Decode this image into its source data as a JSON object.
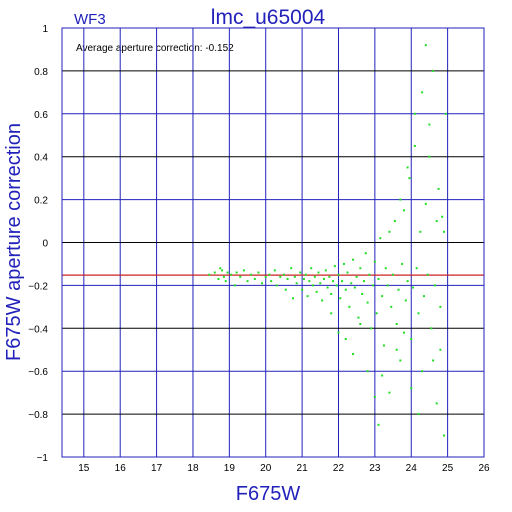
{
  "colors": {
    "axis": "#2222bb",
    "grid_alt": "#000000",
    "points": "#22dd22",
    "ref_line": "#cc2222",
    "text": "#000000"
  },
  "chart_data": {
    "type": "scatter",
    "title": "lmc_u65004",
    "subtitle": "WF3",
    "annotation": "Average aperture correction:  -0.152",
    "xlabel": "F675W",
    "ylabel": "F675W aperture correction",
    "xlim": [
      14.4,
      26
    ],
    "ylim": [
      -1,
      1
    ],
    "xticks": [
      15,
      16,
      17,
      18,
      19,
      20,
      21,
      22,
      23,
      24,
      25,
      26
    ],
    "xtick_labels": [
      "15",
      "16",
      "17",
      "18",
      "19",
      "20",
      "21",
      "22",
      "23",
      "24",
      "25",
      "26"
    ],
    "yticks": [
      -1,
      -0.8,
      -0.6,
      -0.4,
      -0.2,
      0,
      0.2,
      0.4,
      0.6,
      0.8,
      1
    ],
    "ytick_labels": [
      "−1",
      "−0.8",
      "−0.6",
      "−0.4",
      "−0.2",
      "0",
      "0.2",
      "0.4",
      "0.6",
      "0.8",
      "1"
    ],
    "grid": true,
    "reference_line": {
      "y": -0.152
    },
    "series": [
      {
        "points": [
          [
            18.45,
            -0.15
          ],
          [
            18.6,
            -0.14
          ],
          [
            18.7,
            -0.17
          ],
          [
            18.75,
            -0.12
          ],
          [
            18.8,
            -0.13
          ],
          [
            18.85,
            -0.16
          ],
          [
            18.9,
            -0.18
          ],
          [
            18.95,
            -0.14
          ],
          [
            19.05,
            -0.15
          ],
          [
            19.15,
            -0.2
          ],
          [
            19.2,
            -0.14
          ],
          [
            19.3,
            -0.16
          ],
          [
            19.4,
            -0.13
          ],
          [
            19.5,
            -0.18
          ],
          [
            19.6,
            -0.15
          ],
          [
            19.7,
            -0.17
          ],
          [
            19.8,
            -0.14
          ],
          [
            19.9,
            -0.19
          ],
          [
            20.0,
            -0.16
          ],
          [
            20.1,
            -0.15
          ],
          [
            20.15,
            -0.18
          ],
          [
            20.25,
            -0.13
          ],
          [
            20.3,
            -0.2
          ],
          [
            20.4,
            -0.16
          ],
          [
            20.5,
            -0.15
          ],
          [
            20.55,
            -0.22
          ],
          [
            20.6,
            -0.17
          ],
          [
            20.7,
            -0.12
          ],
          [
            20.75,
            -0.26
          ],
          [
            20.8,
            -0.16
          ],
          [
            20.85,
            -0.19
          ],
          [
            20.95,
            -0.14
          ],
          [
            21.0,
            -0.22
          ],
          [
            21.05,
            -0.17
          ],
          [
            21.1,
            -0.15
          ],
          [
            21.15,
            -0.25
          ],
          [
            21.2,
            -0.18
          ],
          [
            21.25,
            -0.12
          ],
          [
            21.3,
            -0.2
          ],
          [
            21.35,
            -0.16
          ],
          [
            21.4,
            -0.23
          ],
          [
            21.45,
            -0.14
          ],
          [
            21.5,
            -0.19
          ],
          [
            21.55,
            -0.27
          ],
          [
            21.6,
            -0.17
          ],
          [
            21.65,
            -0.13
          ],
          [
            21.7,
            -0.21
          ],
          [
            21.75,
            -0.16
          ],
          [
            21.8,
            -0.24
          ],
          [
            21.85,
            -0.18
          ],
          [
            21.9,
            -0.11
          ],
          [
            21.95,
            -0.2
          ],
          [
            22.0,
            -0.15
          ],
          [
            22.05,
            -0.26
          ],
          [
            22.1,
            -0.18
          ],
          [
            22.15,
            -0.1
          ],
          [
            22.2,
            -0.22
          ],
          [
            22.25,
            -0.14
          ],
          [
            22.3,
            -0.3
          ],
          [
            22.35,
            -0.19
          ],
          [
            22.4,
            -0.08
          ],
          [
            22.45,
            -0.21
          ],
          [
            22.5,
            -0.16
          ],
          [
            22.55,
            -0.35
          ],
          [
            22.6,
            -0.12
          ],
          [
            22.65,
            -0.24
          ],
          [
            22.7,
            -0.18
          ],
          [
            22.75,
            -0.05
          ],
          [
            22.8,
            -0.28
          ],
          [
            22.85,
            -0.15
          ],
          [
            22.9,
            -0.4
          ],
          [
            22.95,
            -0.2
          ],
          [
            23.0,
            -0.09
          ],
          [
            23.05,
            -0.33
          ],
          [
            23.1,
            -0.17
          ],
          [
            23.15,
            0.02
          ],
          [
            23.2,
            -0.25
          ],
          [
            23.25,
            -0.48
          ],
          [
            23.3,
            -0.12
          ],
          [
            23.35,
            -0.2
          ],
          [
            23.4,
            0.05
          ],
          [
            23.45,
            -0.3
          ],
          [
            23.5,
            -0.15
          ],
          [
            23.55,
            0.1
          ],
          [
            23.6,
            -0.38
          ],
          [
            23.65,
            -0.22
          ],
          [
            23.7,
            -0.55
          ],
          [
            23.75,
            -0.1
          ],
          [
            23.8,
            0.15
          ],
          [
            23.85,
            -0.27
          ],
          [
            23.9,
            -0.18
          ],
          [
            23.95,
            0.3
          ],
          [
            24.0,
            -0.45
          ],
          [
            24.05,
            -0.21
          ],
          [
            24.1,
            0.6
          ],
          [
            24.15,
            -0.12
          ],
          [
            24.2,
            -0.33
          ],
          [
            24.25,
            0.05
          ],
          [
            24.3,
            -0.6
          ],
          [
            24.35,
            -0.25
          ],
          [
            24.4,
            0.92
          ],
          [
            24.45,
            -0.15
          ],
          [
            24.5,
            0.4
          ],
          [
            24.55,
            -0.4
          ],
          [
            24.6,
            0.8
          ],
          [
            24.65,
            -0.2
          ],
          [
            24.7,
            -0.75
          ],
          [
            24.75,
            0.25
          ],
          [
            24.8,
            -0.5
          ],
          [
            24.85,
            0.12
          ],
          [
            24.9,
            -0.9
          ],
          [
            24.95,
            0.6
          ],
          [
            23.1,
            -0.85
          ],
          [
            23.2,
            -0.62
          ],
          [
            23.4,
            -0.7
          ],
          [
            23.6,
            -0.5
          ],
          [
            23.8,
            -0.42
          ],
          [
            24.0,
            -0.68
          ],
          [
            24.2,
            -0.8
          ],
          [
            24.6,
            -0.55
          ],
          [
            22.2,
            -0.45
          ],
          [
            22.4,
            -0.52
          ],
          [
            22.6,
            -0.38
          ],
          [
            22.8,
            -0.6
          ],
          [
            23.0,
            -0.72
          ],
          [
            21.8,
            -0.33
          ],
          [
            22.0,
            -0.42
          ],
          [
            24.8,
            -0.3
          ],
          [
            24.3,
            0.7
          ],
          [
            24.5,
            0.55
          ],
          [
            24.1,
            0.45
          ],
          [
            23.9,
            0.35
          ],
          [
            23.7,
            0.2
          ],
          [
            24.4,
            0.18
          ],
          [
            24.7,
            0.1
          ],
          [
            24.9,
            0.05
          ]
        ]
      }
    ]
  }
}
